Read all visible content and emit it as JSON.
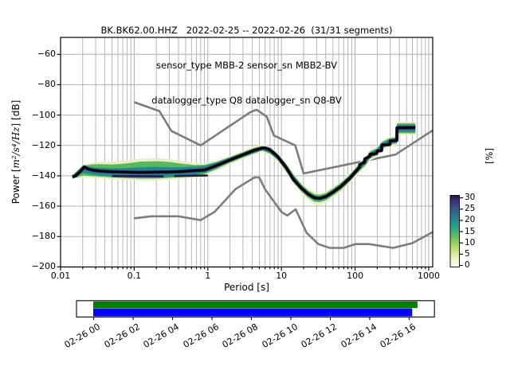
{
  "title": {
    "line1": "BK.BK62.00.HHZ   2022-02-25 -- 2022-02-26  (31/31 segments)",
    "line2": "sensor_type MBB-2 sensor_sn MBB2-BV",
    "line3": "datalogger_type Q8 datalogger_sn Q8-BV"
  },
  "axes": {
    "xlabel": "Period [s]",
    "ylabel_pre": "Power [",
    "ylabel_math": "m²/s⁴/Hz",
    "ylabel_post": "] [dB]",
    "x_tick_labels": [
      "0.01",
      "0.1",
      "1",
      "10",
      "100",
      "1000"
    ],
    "x_tick_values": [
      0.01,
      0.1,
      1,
      10,
      100,
      1000
    ],
    "y_tick_labels": [
      "−200",
      "−180",
      "−160",
      "−140",
      "−120",
      "−100",
      "−80",
      "−60"
    ],
    "y_tick_values": [
      -200,
      -180,
      -160,
      -140,
      -120,
      -100,
      -80,
      -60
    ]
  },
  "colorbar": {
    "unit": "[%]",
    "tick_labels": [
      "30",
      "25",
      "20",
      "15",
      "10",
      "5",
      "0"
    ],
    "tick_values": [
      30,
      25,
      20,
      15,
      10,
      5,
      0
    ],
    "gradient_bottom_to_top": [
      "#fdfdf5",
      "#f3f7d3",
      "#dfeda1",
      "#c2e170",
      "#97d455",
      "#62c35e",
      "#3bb273",
      "#279d87",
      "#26848e",
      "#2f6b8e",
      "#38508b",
      "#3c3178",
      "#2d0f4e"
    ]
  },
  "timeline": {
    "tick_labels": [
      "02-26 00",
      "02-26 02",
      "02-26 04",
      "02-26 06",
      "02-26 08",
      "02-26 10",
      "02-26 12",
      "02-26 14",
      "02-26 16"
    ],
    "tick_hours": [
      0,
      2,
      4,
      6,
      8,
      10,
      12,
      14,
      16
    ],
    "box_hours": [
      -0.87,
      17.28
    ],
    "data_bar": {
      "hours": [
        -0.02,
        16.42
      ],
      "color": "#008000"
    },
    "used_bar": {
      "hours": [
        -0.02,
        16.15
      ],
      "color": "#0000ff"
    }
  },
  "chart_data": {
    "type": "line",
    "xlabel": "Period [s]",
    "ylabel": "Power [m2/s4/Hz] [dB]",
    "xscale": "log",
    "xlim": [
      0.01,
      1132
    ],
    "ylim": [
      -200,
      -48
    ],
    "grid": true,
    "colors": {
      "noise_model": "#7d7d7d",
      "grid": "#b0b0b0",
      "mode_line": "#000000",
      "band_pale": "#e7f0c3",
      "band_green": "#55b95f",
      "band_teal": "#27858c",
      "band_dark": "#241a4e"
    },
    "series": [
      {
        "name": "psd_mode_line",
        "points": [
          [
            0.0145,
            -140.7
          ],
          [
            0.016,
            -140.0
          ],
          [
            0.018,
            -137.8
          ],
          [
            0.021,
            -134.2
          ],
          [
            0.024,
            -135.6
          ],
          [
            0.028,
            -136.4
          ],
          [
            0.035,
            -136.9
          ],
          [
            0.05,
            -137.4
          ],
          [
            0.08,
            -137.6
          ],
          [
            0.12,
            -137.8
          ],
          [
            0.2,
            -137.6
          ],
          [
            0.3,
            -137.5
          ],
          [
            0.45,
            -137.2
          ],
          [
            0.65,
            -136.6
          ],
          [
            0.9,
            -136.2
          ],
          [
            1.2,
            -134.0
          ],
          [
            1.6,
            -131.5
          ],
          [
            2.2,
            -128.8
          ],
          [
            3.0,
            -126.2
          ],
          [
            4.2,
            -123.3
          ],
          [
            5.3,
            -121.9
          ],
          [
            6.0,
            -121.7
          ],
          [
            6.8,
            -122.6
          ],
          [
            7.8,
            -124.8
          ],
          [
            9.0,
            -127.7
          ],
          [
            11.5,
            -134.3
          ],
          [
            14.5,
            -142.3
          ],
          [
            18.5,
            -148.0
          ],
          [
            23,
            -152.0
          ],
          [
            28,
            -154.5
          ],
          [
            33,
            -154.9
          ],
          [
            40,
            -153.7
          ],
          [
            50,
            -150.8
          ],
          [
            65,
            -146.8
          ],
          [
            85,
            -141.5
          ],
          [
            105,
            -136.5
          ],
          [
            115,
            -134.3
          ],
          [
            116,
            -132.7
          ],
          [
            135,
            -131.0
          ],
          [
            136,
            -128.9
          ],
          [
            158,
            -127.2
          ],
          [
            160,
            -125.9
          ],
          [
            196,
            -125.3
          ],
          [
            200,
            -123.7
          ],
          [
            228,
            -123.4
          ],
          [
            232,
            -119.7
          ],
          [
            296,
            -119.4
          ],
          [
            300,
            -117.1
          ],
          [
            368,
            -116.7
          ],
          [
            372,
            -108.4
          ],
          [
            660,
            -108.3
          ]
        ]
      },
      {
        "name": "nhnm",
        "points": [
          [
            0.1,
            -91.5
          ],
          [
            0.22,
            -97.4
          ],
          [
            0.32,
            -110.5
          ],
          [
            0.8,
            -120.0
          ],
          [
            3.8,
            -98.0
          ],
          [
            4.6,
            -96.5
          ],
          [
            6.3,
            -101.0
          ],
          [
            7.9,
            -113.5
          ],
          [
            15.4,
            -120.0
          ],
          [
            20,
            -138.5
          ],
          [
            354.8,
            -126.0
          ],
          [
            1132,
            -110.1
          ]
        ]
      },
      {
        "name": "nlnm",
        "points": [
          [
            0.1,
            -168.0
          ],
          [
            0.17,
            -166.7
          ],
          [
            0.4,
            -166.7
          ],
          [
            0.8,
            -169.2
          ],
          [
            1.24,
            -163.7
          ],
          [
            2.4,
            -148.6
          ],
          [
            4.3,
            -141.1
          ],
          [
            5.0,
            -141.1
          ],
          [
            6.0,
            -149.0
          ],
          [
            10,
            -163.8
          ],
          [
            12,
            -166.2
          ],
          [
            15.6,
            -162.1
          ],
          [
            21.9,
            -177.5
          ],
          [
            31.6,
            -185.0
          ],
          [
            45,
            -187.5
          ],
          [
            70,
            -187.5
          ],
          [
            101,
            -185.0
          ],
          [
            154,
            -185.0
          ],
          [
            328,
            -187.5
          ],
          [
            600,
            -184.4
          ],
          [
            1132,
            -177.1
          ]
        ]
      }
    ],
    "bands": [
      {
        "name": "pale",
        "points": [
          [
            0.0145,
            -139.2,
            -142.2
          ],
          [
            0.02,
            -132.6,
            -141.2
          ],
          [
            0.03,
            -130.9,
            -141.6
          ],
          [
            0.05,
            -130.6,
            -142.4
          ],
          [
            0.08,
            -129.9,
            -142.9
          ],
          [
            0.12,
            -128.7,
            -143.1
          ],
          [
            0.2,
            -128.4,
            -143.1
          ],
          [
            0.3,
            -128.9,
            -142.7
          ],
          [
            0.45,
            -130.3,
            -142.1
          ],
          [
            0.65,
            -131.4,
            -141.3
          ],
          [
            0.9,
            -131.9,
            -139.9
          ],
          [
            1.3,
            -129.9,
            -136.7
          ],
          [
            2,
            -126.7,
            -132.7
          ],
          [
            3,
            -123.4,
            -129.1
          ],
          [
            4.2,
            -120.7,
            -126.4
          ],
          [
            5.5,
            -119.4,
            -124.4
          ],
          [
            7,
            -120.4,
            -126.4
          ],
          [
            9,
            -124.9,
            -131.1
          ],
          [
            11.5,
            -131.1,
            -138.1
          ],
          [
            14.5,
            -138.1,
            -145.6
          ],
          [
            18.5,
            -144.1,
            -151.6
          ],
          [
            23,
            -148.4,
            -155.9
          ],
          [
            28,
            -150.9,
            -158.9
          ],
          [
            33,
            -151.4,
            -159.4
          ],
          [
            40,
            -150.4,
            -157.9
          ],
          [
            50,
            -147.4,
            -154.4
          ],
          [
            65,
            -143.4,
            -150.4
          ],
          [
            85,
            -138.1,
            -144.9
          ],
          [
            105,
            -133.1,
            -139.9
          ],
          [
            120,
            -130.1,
            -137.1
          ],
          [
            140,
            -127.1,
            -134.1
          ],
          [
            160,
            -122.9,
            -129.9
          ],
          [
            200,
            -120.7,
            -127.7
          ],
          [
            232,
            -116.7,
            -123.7
          ],
          [
            300,
            -114.1,
            -120.7
          ],
          [
            368,
            -113.7,
            -119.7
          ],
          [
            372,
            -104.4,
            -113.0
          ],
          [
            660,
            -104.4,
            -113.0
          ]
        ]
      },
      {
        "name": "green",
        "points": [
          [
            0.0145,
            -139.7,
            -141.7
          ],
          [
            0.02,
            -133.3,
            -139.9
          ],
          [
            0.03,
            -132.3,
            -140.4
          ],
          [
            0.05,
            -132.6,
            -141.1
          ],
          [
            0.08,
            -131.9,
            -141.6
          ],
          [
            0.12,
            -130.7,
            -141.9
          ],
          [
            0.2,
            -130.4,
            -141.9
          ],
          [
            0.3,
            -130.9,
            -141.4
          ],
          [
            0.45,
            -132.1,
            -140.9
          ],
          [
            0.65,
            -132.9,
            -140.3
          ],
          [
            0.9,
            -132.9,
            -138.9
          ],
          [
            1.3,
            -130.9,
            -135.7
          ],
          [
            2,
            -127.7,
            -131.4
          ],
          [
            3,
            -124.4,
            -128.0
          ],
          [
            4.2,
            -121.7,
            -125.4
          ],
          [
            5.5,
            -120.4,
            -123.4
          ],
          [
            7,
            -121.4,
            -125.4
          ],
          [
            9,
            -125.9,
            -129.9
          ],
          [
            11.5,
            -132.1,
            -136.7
          ],
          [
            14.5,
            -139.1,
            -144.1
          ],
          [
            18.5,
            -145.4,
            -150.1
          ],
          [
            23,
            -149.6,
            -154.4
          ],
          [
            28,
            -152.1,
            -157.1
          ],
          [
            33,
            -152.6,
            -157.4
          ],
          [
            40,
            -151.4,
            -156.1
          ],
          [
            50,
            -148.4,
            -153.1
          ],
          [
            65,
            -144.4,
            -149.1
          ],
          [
            85,
            -139.1,
            -143.7
          ],
          [
            105,
            -134.1,
            -138.7
          ],
          [
            120,
            -131.1,
            -135.9
          ],
          [
            140,
            -128.1,
            -132.9
          ],
          [
            160,
            -123.9,
            -128.4
          ],
          [
            200,
            -121.7,
            -126.1
          ],
          [
            232,
            -117.7,
            -122.1
          ],
          [
            300,
            -115.1,
            -119.4
          ],
          [
            368,
            -114.7,
            -118.7
          ],
          [
            372,
            -105.4,
            -112.0
          ],
          [
            660,
            -105.4,
            -112.0
          ]
        ]
      },
      {
        "name": "teal",
        "points": [
          [
            0.0145,
            -140.1,
            -141.4
          ],
          [
            0.02,
            -133.7,
            -138.1
          ],
          [
            0.03,
            -134.6,
            -139.6
          ],
          [
            0.05,
            -135.1,
            -140.4
          ],
          [
            0.08,
            -134.9,
            -140.9
          ],
          [
            0.12,
            -134.4,
            -141.1
          ],
          [
            0.2,
            -134.1,
            -141.1
          ],
          [
            0.3,
            -134.4,
            -140.7
          ],
          [
            0.45,
            -134.4,
            -140.1
          ],
          [
            0.65,
            -134.0,
            -139.4
          ],
          [
            0.9,
            -133.4,
            -137.9
          ],
          [
            1.3,
            -131.4,
            -134.9
          ],
          [
            2,
            -128.0,
            -130.4
          ],
          [
            3,
            -125.0,
            -127.3
          ],
          [
            4.2,
            -122.4,
            -125.0
          ],
          [
            5.5,
            -120.9,
            -122.9
          ],
          [
            7,
            -122.4,
            -125.0
          ],
          [
            9,
            -126.4,
            -129.0
          ],
          [
            11.5,
            -132.9,
            -135.7
          ],
          [
            14.5,
            -139.9,
            -142.9
          ],
          [
            18.5,
            -146.4,
            -149.1
          ],
          [
            23,
            -150.5,
            -153.3
          ],
          [
            28,
            -153.1,
            -156.0
          ],
          [
            33,
            -153.6,
            -156.3
          ],
          [
            40,
            -152.4,
            -155.1
          ],
          [
            50,
            -149.5,
            -152.2
          ],
          [
            65,
            -145.5,
            -148.2
          ],
          [
            85,
            -140.2,
            -142.9
          ],
          [
            105,
            -135.2,
            -137.9
          ],
          [
            120,
            -132.1,
            -135.0
          ],
          [
            140,
            -129.1,
            -132.1
          ],
          [
            160,
            -124.7,
            -127.4
          ],
          [
            200,
            -122.4,
            -125.1
          ],
          [
            232,
            -118.4,
            -121.1
          ],
          [
            300,
            -115.8,
            -118.5
          ],
          [
            368,
            -115.4,
            -118.1
          ],
          [
            372,
            -106.4,
            -111.0
          ],
          [
            660,
            -106.4,
            -111.0
          ]
        ]
      }
    ],
    "dark_rows": [
      {
        "points": [
          [
            0.05,
            -140.2
          ],
          [
            0.25,
            -140.4
          ]
        ]
      },
      {
        "points": [
          [
            0.35,
            -140.2
          ],
          [
            1.0,
            -139.8
          ]
        ]
      }
    ],
    "colorbar_range": [
      0,
      30
    ],
    "colorbar_unit": "%"
  }
}
